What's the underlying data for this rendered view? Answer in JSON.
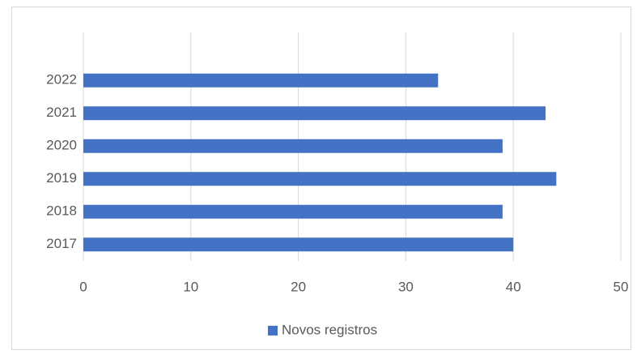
{
  "chart_data": {
    "type": "bar",
    "orientation": "horizontal",
    "categories": [
      "2017",
      "2018",
      "2019",
      "2020",
      "2021",
      "2022"
    ],
    "series": [
      {
        "name": "Novos registros",
        "color": "#4472c4",
        "values": [
          40,
          39,
          44,
          39,
          43,
          33
        ]
      }
    ],
    "xlim": [
      0,
      50
    ],
    "xticks": [
      0,
      10,
      20,
      30,
      40,
      50
    ],
    "grid": true,
    "legend": "bottom"
  }
}
